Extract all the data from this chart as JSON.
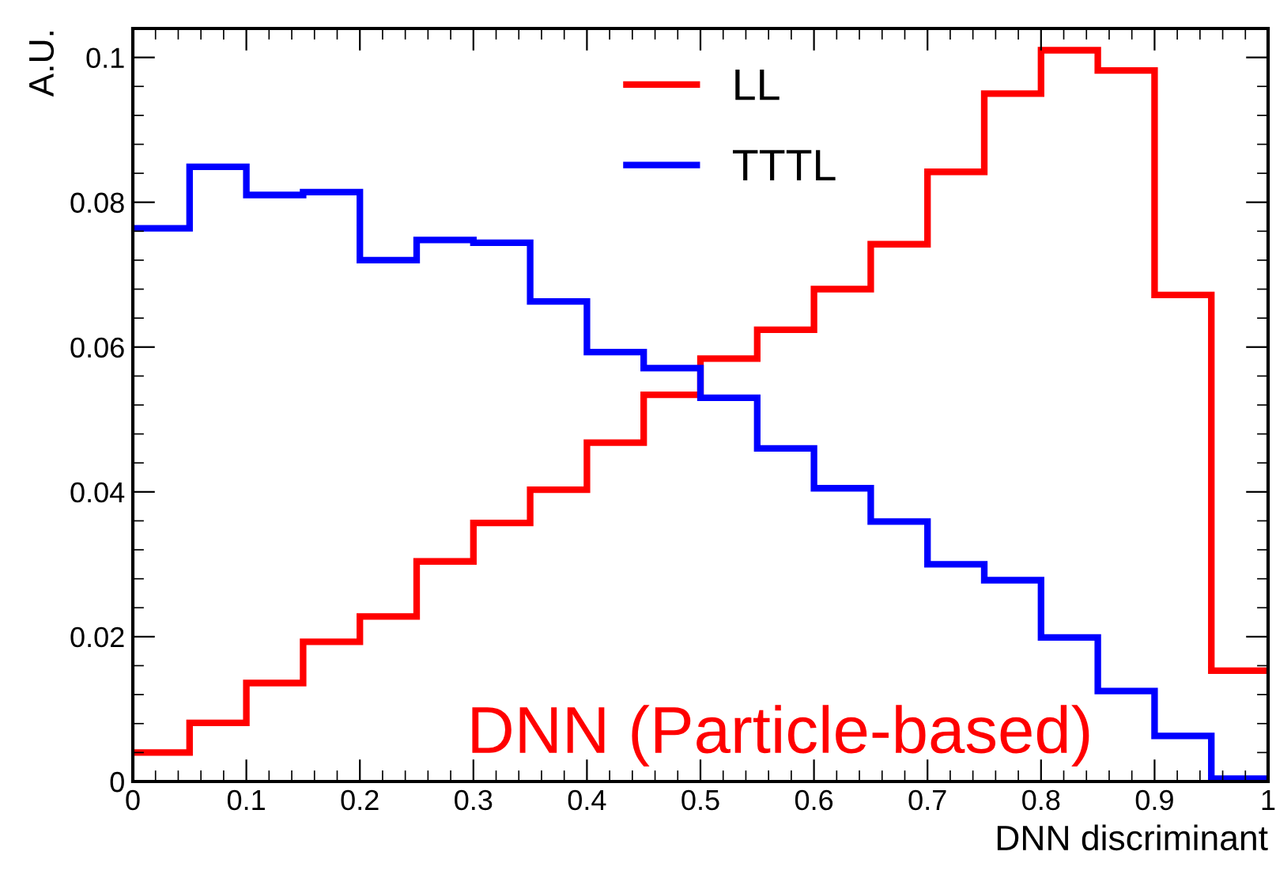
{
  "chart_data": {
    "type": "histogram",
    "xlabel": "DNN discriminant",
    "ylabel": "A.U.",
    "bins": [
      0,
      0.05,
      0.1,
      0.15,
      0.2,
      0.25,
      0.3,
      0.35,
      0.4,
      0.45,
      0.5,
      0.55,
      0.6,
      0.65,
      0.7,
      0.75,
      0.8,
      0.85,
      0.9,
      0.95,
      1
    ],
    "series": [
      {
        "name": "LL",
        "color": "#ff0000",
        "values": [
          0.004,
          0.0081,
          0.0136,
          0.0193,
          0.0228,
          0.0304,
          0.0357,
          0.0403,
          0.0468,
          0.0534,
          0.0584,
          0.0624,
          0.068,
          0.0742,
          0.0842,
          0.095,
          0.101,
          0.0982,
          0.0672,
          0.0153
        ]
      },
      {
        "name": "TTTL",
        "color": "#0000ff",
        "values": [
          0.0764,
          0.0849,
          0.081,
          0.0814,
          0.072,
          0.0748,
          0.0744,
          0.0663,
          0.0593,
          0.0571,
          0.053,
          0.046,
          0.0405,
          0.0359,
          0.03,
          0.0278,
          0.0199,
          0.0125,
          0.0063,
          0.0004
        ]
      }
    ],
    "xlim": [
      0,
      1
    ],
    "xticks": [
      0,
      0.1,
      0.2,
      0.3,
      0.4,
      0.5,
      0.6,
      0.7,
      0.8,
      0.9,
      1
    ],
    "ylim": [
      0,
      0.104
    ],
    "yticks": [
      0,
      0.02,
      0.04,
      0.06,
      0.08,
      0.1
    ],
    "legend": "top",
    "grid": false,
    "annotations": [
      "DNN (Particle-based)"
    ]
  }
}
